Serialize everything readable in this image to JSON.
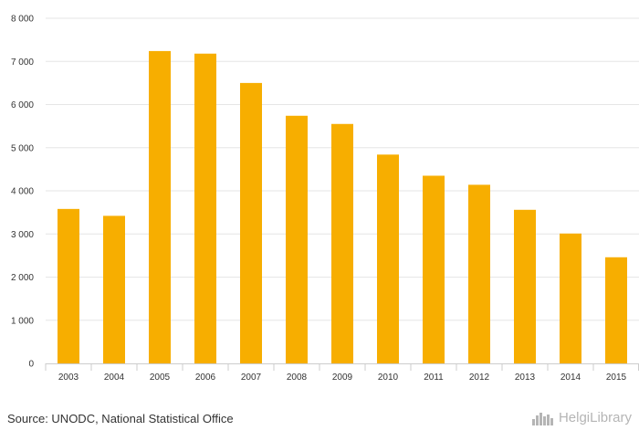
{
  "chart_data": {
    "type": "bar",
    "categories": [
      "2003",
      "2004",
      "2005",
      "2006",
      "2007",
      "2008",
      "2009",
      "2010",
      "2011",
      "2012",
      "2013",
      "2014",
      "2015"
    ],
    "values": [
      3580,
      3420,
      7240,
      7180,
      6500,
      5740,
      5550,
      4840,
      4350,
      4140,
      3560,
      3010,
      2460
    ],
    "yticks": [
      0,
      1000,
      2000,
      3000,
      4000,
      5000,
      6000,
      7000,
      8000
    ],
    "ytick_labels": [
      "0",
      "1 000",
      "2 000",
      "3 000",
      "4 000",
      "5 000",
      "6 000",
      "7 000",
      "8 000"
    ],
    "ylim": [
      0,
      8000
    ],
    "grid": true,
    "bar_color": "#f7ae00",
    "grid_color": "#e6e6e6",
    "xlabel": "",
    "ylabel": "",
    "title": ""
  },
  "footer": {
    "source": "Source: UNODC, National Statistical Office",
    "brand": "HelgiLibrary",
    "brand_icon": "city-skyline-icon",
    "brand_color": "#b5b5b5"
  }
}
